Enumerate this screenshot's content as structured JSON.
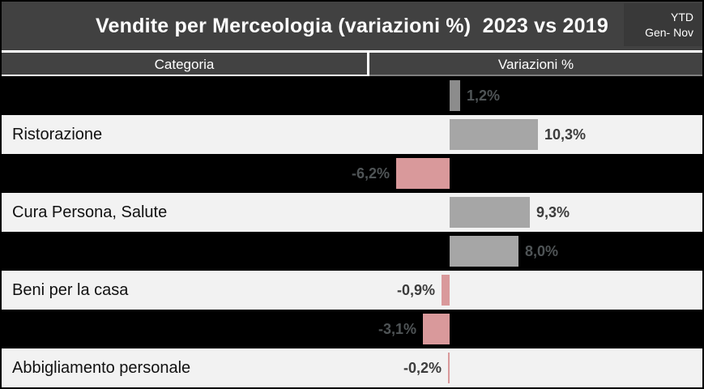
{
  "header": {
    "title": "Vendite per Merceologia (variazioni %)  2023 vs 2019",
    "badge_line1": "YTD",
    "badge_line2": "Gen- Nov"
  },
  "table_header": {
    "category": "Categoria",
    "variation": "Variazioni %"
  },
  "colors": {
    "banner_bg": "#414141",
    "badge_bg": "#393939",
    "header_row_bg": "#424242",
    "row_dark_bg": "#000000",
    "row_light_bg": "#f2f2f2",
    "bar_positive": "#a6a6a6",
    "bar_positive_dark": "#8c8c8c",
    "bar_negative": "#d9999b",
    "axis_line": "#7f7f7f"
  },
  "chart_data": {
    "type": "bar",
    "orientation": "horizontal",
    "title": "Vendite per Merceologia (variazioni %) 2023 vs 2019",
    "period_badge": "YTD Gen- Nov",
    "category_axis_label": "Categoria",
    "value_axis_label": "Variazioni %",
    "legend": "none",
    "grid": "off",
    "categories": [
      "",
      "Ristorazione",
      "",
      "Cura Persona, Salute",
      "",
      "Beni per la casa",
      "",
      "Abbigliamento personale"
    ],
    "values": [
      1.2,
      10.3,
      -6.2,
      9.3,
      8.0,
      -0.9,
      -3.1,
      -0.2
    ],
    "value_labels": [
      "1,2%",
      "10,3%",
      "-6,2%",
      "9,3%",
      "8,0%",
      "-0,9%",
      "-3,1%",
      "-0,2%"
    ],
    "bar_styles": [
      "positive_dark",
      "positive",
      "negative",
      "positive",
      "positive",
      "negative",
      "negative",
      "negative"
    ],
    "row_shades": [
      "dark",
      "light",
      "dark",
      "light",
      "dark",
      "light",
      "dark",
      "light"
    ]
  }
}
